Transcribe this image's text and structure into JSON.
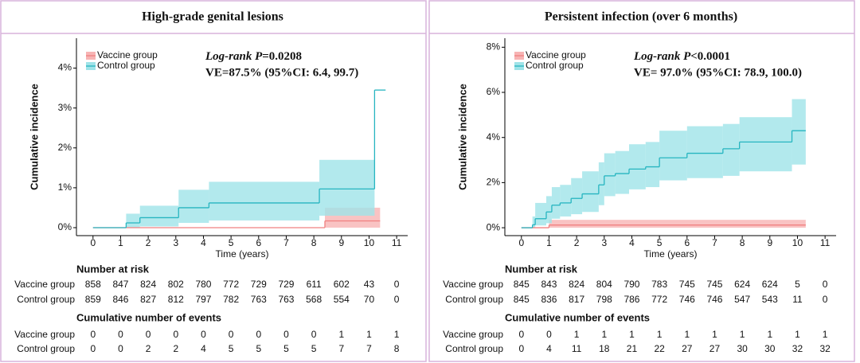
{
  "chart_data": [
    {
      "type": "step",
      "title": "High-grade genital lesions",
      "xlabel": "Time (years)",
      "ylabel": "Cumulative incidence",
      "xlim": [
        -0.6,
        11.4
      ],
      "ylim": [
        -0.2,
        4.75
      ],
      "xticks": [
        0,
        1,
        2,
        3,
        4,
        5,
        6,
        7,
        8,
        9,
        10,
        11
      ],
      "yticks": [
        {
          "value": 0,
          "label": "0%"
        },
        {
          "value": 1,
          "label": "1%"
        },
        {
          "value": 2,
          "label": "2%"
        },
        {
          "value": 3,
          "label": "3%"
        },
        {
          "value": 4,
          "label": "4%"
        }
      ],
      "legend": "top-left",
      "annotation": {
        "test": "Log-rank P",
        "p": "=0.0208",
        "ve": "VE=87.5% (95%CI: 6.4, 99.7)"
      },
      "series": [
        {
          "name": "Vaccine group",
          "color": "#f08080",
          "band_color": "#f7b4b4",
          "x": [
            0,
            8.4,
            10.4
          ],
          "values": [
            0,
            0.17,
            0.17
          ],
          "lower": [
            null,
            0,
            null
          ],
          "upper": [
            null,
            0.5,
            null
          ]
        },
        {
          "name": "Control group",
          "color": "#26b5c0",
          "band_color": "#9fe3e8",
          "x": [
            0,
            1.2,
            1.7,
            3.1,
            4.2,
            8.2,
            10.2,
            10.6
          ],
          "values": [
            0,
            0.12,
            0.25,
            0.5,
            0.62,
            0.97,
            3.45,
            3.45
          ],
          "lower": [
            null,
            0,
            0.03,
            0.12,
            0.18,
            0.3,
            null,
            null
          ],
          "upper": [
            null,
            0.35,
            0.55,
            0.95,
            1.15,
            1.7,
            null,
            null
          ]
        }
      ],
      "tables": [
        {
          "title": "Number at risk",
          "rows": [
            {
              "name": "Vaccine group",
              "values": [
                858,
                847,
                824,
                802,
                780,
                772,
                729,
                729,
                611,
                602,
                43,
                0
              ]
            },
            {
              "name": "Control group",
              "values": [
                859,
                846,
                827,
                812,
                797,
                782,
                763,
                763,
                568,
                554,
                70,
                0
              ]
            }
          ]
        },
        {
          "title": "Cumulative number of events",
          "rows": [
            {
              "name": "Vaccine group",
              "values": [
                0,
                0,
                0,
                0,
                0,
                0,
                0,
                0,
                0,
                1,
                1,
                1
              ]
            },
            {
              "name": "Control group",
              "values": [
                0,
                0,
                2,
                2,
                4,
                5,
                5,
                5,
                5,
                7,
                7,
                8
              ]
            }
          ]
        }
      ]
    },
    {
      "type": "step",
      "title": "Persistent infection (over 6 months)",
      "xlabel": "Time (years)",
      "ylabel": "Cumulative incidence",
      "xlim": [
        -0.6,
        11.4
      ],
      "ylim": [
        -0.35,
        8.4
      ],
      "xticks": [
        0,
        1,
        2,
        3,
        4,
        5,
        6,
        7,
        8,
        9,
        10,
        11
      ],
      "yticks": [
        {
          "value": 0,
          "label": "0%"
        },
        {
          "value": 2,
          "label": "2%"
        },
        {
          "value": 4,
          "label": "4%"
        },
        {
          "value": 6,
          "label": "6%"
        },
        {
          "value": 8,
          "label": "8%"
        }
      ],
      "legend": "top-left",
      "annotation": {
        "test": "Log-rank P",
        "p": "<0.0001",
        "ve": "VE= 97.0% (95%CI: 78.9, 100.0)"
      },
      "series": [
        {
          "name": "Vaccine group",
          "color": "#f08080",
          "band_color": "#f7b4b4",
          "x": [
            0,
            1.0,
            10.3
          ],
          "values": [
            0,
            0.12,
            0.12
          ],
          "lower": [
            null,
            0,
            null
          ],
          "upper": [
            null,
            0.35,
            null
          ]
        },
        {
          "name": "Control group",
          "color": "#26b5c0",
          "band_color": "#9fe3e8",
          "x": [
            0,
            0.4,
            0.5,
            0.9,
            1.1,
            1.4,
            1.8,
            2.2,
            2.8,
            3.0,
            3.4,
            3.9,
            4.5,
            5.0,
            6.0,
            7.3,
            7.9,
            9.8,
            10.3
          ],
          "values": [
            0,
            0.13,
            0.4,
            0.7,
            1.0,
            1.1,
            1.3,
            1.5,
            1.9,
            2.3,
            2.4,
            2.6,
            2.7,
            3.1,
            3.3,
            3.5,
            3.8,
            4.3,
            4.3
          ],
          "lower": [
            null,
            0,
            0.1,
            0.2,
            0.4,
            0.5,
            0.6,
            0.7,
            1.0,
            1.4,
            1.5,
            1.7,
            1.8,
            2.1,
            2.2,
            2.3,
            2.5,
            2.8,
            null
          ],
          "upper": [
            null,
            0.5,
            1.1,
            1.4,
            1.8,
            1.9,
            2.2,
            2.5,
            2.9,
            3.3,
            3.4,
            3.7,
            3.8,
            4.3,
            4.5,
            4.6,
            4.9,
            5.7,
            null
          ]
        }
      ],
      "tables": [
        {
          "title": "Number at risk",
          "rows": [
            {
              "name": "Vaccine group",
              "values": [
                845,
                843,
                824,
                804,
                790,
                783,
                745,
                745,
                624,
                624,
                5,
                0
              ]
            },
            {
              "name": "Control group",
              "values": [
                845,
                836,
                817,
                798,
                786,
                772,
                746,
                746,
                547,
                543,
                11,
                0
              ]
            }
          ]
        },
        {
          "title": "Cumulative number of events",
          "rows": [
            {
              "name": "Vaccine group",
              "values": [
                0,
                0,
                1,
                1,
                1,
                1,
                1,
                1,
                1,
                1,
                1,
                1
              ]
            },
            {
              "name": "Control group",
              "values": [
                0,
                4,
                11,
                18,
                21,
                22,
                27,
                27,
                30,
                30,
                32,
                32
              ]
            }
          ]
        }
      ]
    }
  ]
}
